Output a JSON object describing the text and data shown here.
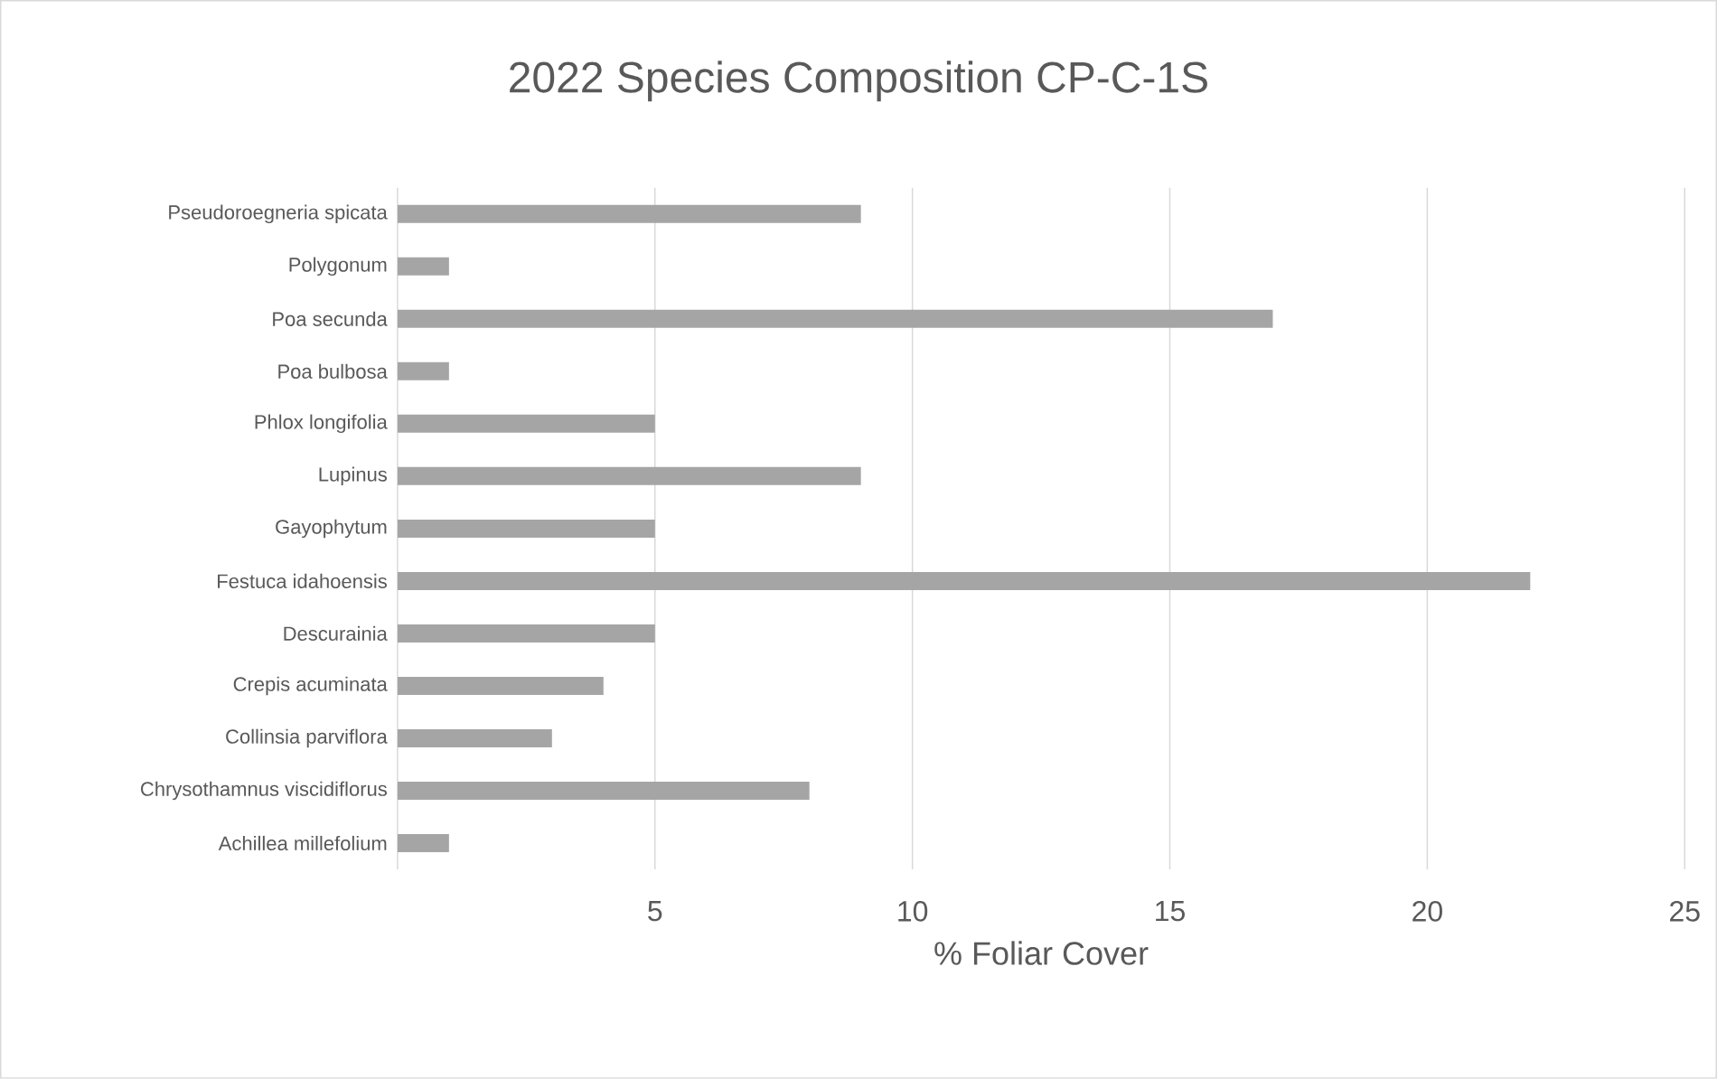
{
  "chart_data": {
    "type": "bar",
    "orientation": "horizontal",
    "title": "2022 Species Composition CP-C-1S",
    "xlabel": "% Foliar Cover",
    "categories": [
      "Pseudoroegneria spicata",
      "Polygonum",
      "Poa secunda",
      "Poa bulbosa",
      "Phlox longifolia",
      "Lupinus",
      "Gayophytum",
      "Festuca idahoensis",
      "Descurainia",
      "Crepis acuminata",
      "Collinsia parviflora",
      "Chrysothamnus viscidiflorus",
      "Achillea millefolium"
    ],
    "values": [
      9,
      1,
      17,
      1,
      5,
      9,
      5,
      22,
      5,
      4,
      3,
      8,
      1
    ],
    "color": "#a5a5a5",
    "xlim": [
      0,
      25
    ],
    "xticks": [
      5,
      10,
      15,
      20,
      25
    ],
    "grid": "x"
  }
}
